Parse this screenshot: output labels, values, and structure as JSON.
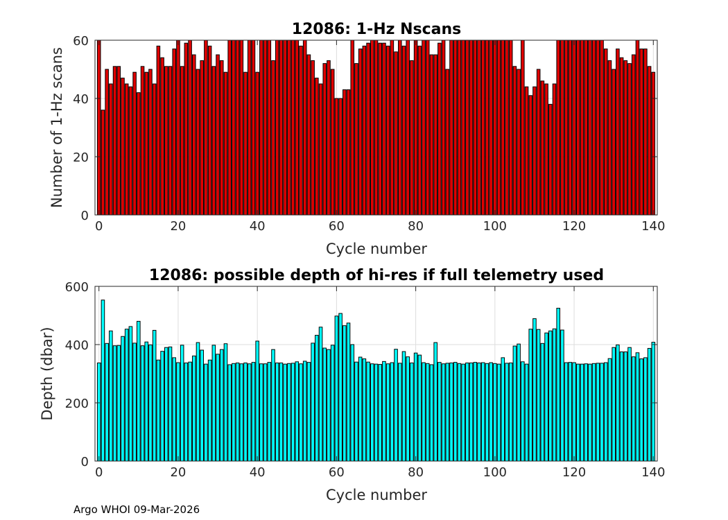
{
  "footer": "Argo WHOI 09-Mar-2026",
  "chart_data": [
    {
      "type": "bar",
      "title": "12086: 1-Hz Nscans",
      "xlabel": "Cycle number",
      "ylabel": "Number of 1-Hz scans",
      "xlim": [
        -1,
        141
      ],
      "ylim": [
        0,
        60
      ],
      "xticks": [
        0,
        20,
        40,
        60,
        80,
        100,
        120,
        140
      ],
      "yticks": [
        0,
        20,
        40,
        60
      ],
      "grid": true,
      "color": "#e00000",
      "x": [
        0,
        1,
        2,
        3,
        4,
        5,
        6,
        7,
        8,
        9,
        10,
        11,
        12,
        13,
        14,
        15,
        16,
        17,
        18,
        19,
        20,
        21,
        22,
        23,
        24,
        25,
        26,
        27,
        28,
        29,
        30,
        31,
        32,
        33,
        34,
        35,
        36,
        37,
        38,
        39,
        40,
        41,
        42,
        43,
        44,
        45,
        46,
        47,
        48,
        49,
        50,
        51,
        52,
        53,
        54,
        55,
        56,
        57,
        58,
        59,
        60,
        61,
        62,
        63,
        64,
        65,
        66,
        67,
        68,
        69,
        70,
        71,
        72,
        73,
        74,
        75,
        76,
        77,
        78,
        79,
        80,
        81,
        82,
        83,
        84,
        85,
        86,
        87,
        88,
        89,
        90,
        91,
        92,
        93,
        94,
        95,
        96,
        97,
        98,
        99,
        100,
        101,
        102,
        103,
        104,
        105,
        106,
        107,
        108,
        109,
        110,
        111,
        112,
        113,
        114,
        115,
        116,
        117,
        118,
        119,
        120,
        121,
        122,
        123,
        124,
        125,
        126,
        127,
        128,
        129,
        130,
        131,
        132,
        133,
        134,
        135,
        136,
        137,
        138,
        139,
        140
      ],
      "values": [
        60,
        36,
        50,
        45,
        51,
        51,
        47,
        45,
        44,
        49,
        42,
        51,
        49,
        50,
        45,
        58,
        54,
        51,
        51,
        57,
        60,
        51,
        59,
        60,
        55,
        50,
        53,
        60,
        58,
        51,
        55,
        53,
        49,
        60,
        60,
        60,
        60,
        49,
        60,
        60,
        49,
        60,
        60,
        60,
        53,
        60,
        60,
        60,
        60,
        60,
        60,
        58,
        60,
        55,
        53,
        47,
        45,
        52,
        53,
        50,
        40,
        40,
        43,
        43,
        60,
        52,
        57,
        58,
        59,
        60,
        60,
        59,
        59,
        58,
        60,
        56,
        60,
        58,
        60,
        53,
        60,
        58,
        60,
        60,
        55,
        55,
        59,
        60,
        50,
        60,
        60,
        60,
        60,
        60,
        60,
        60,
        60,
        60,
        60,
        60,
        60,
        60,
        60,
        60,
        60,
        51,
        50,
        60,
        44,
        41,
        44,
        50,
        46,
        45,
        38,
        45,
        60,
        60,
        60,
        60,
        60,
        60,
        60,
        60,
        60,
        60,
        60,
        60,
        57,
        53,
        50,
        57,
        54,
        53,
        52,
        55,
        60,
        57,
        57,
        51,
        49
      ]
    },
    {
      "type": "bar",
      "title": "12086: possible depth of hi-res if full telemetry used",
      "xlabel": "Cycle number",
      "ylabel": "Depth (dbar)",
      "xlim": [
        -1,
        141
      ],
      "ylim": [
        0,
        600
      ],
      "xticks": [
        0,
        20,
        40,
        60,
        80,
        100,
        120,
        140
      ],
      "yticks": [
        0,
        200,
        400,
        600
      ],
      "grid": true,
      "color": "#00ffff",
      "x": [
        0,
        1,
        2,
        3,
        4,
        5,
        6,
        7,
        8,
        9,
        10,
        11,
        12,
        13,
        14,
        15,
        16,
        17,
        18,
        19,
        20,
        21,
        22,
        23,
        24,
        25,
        26,
        27,
        28,
        29,
        30,
        31,
        32,
        33,
        34,
        35,
        36,
        37,
        38,
        39,
        40,
        41,
        42,
        43,
        44,
        45,
        46,
        47,
        48,
        49,
        50,
        51,
        52,
        53,
        54,
        55,
        56,
        57,
        58,
        59,
        60,
        61,
        62,
        63,
        64,
        65,
        66,
        67,
        68,
        69,
        70,
        71,
        72,
        73,
        74,
        75,
        76,
        77,
        78,
        79,
        80,
        81,
        82,
        83,
        84,
        85,
        86,
        87,
        88,
        89,
        90,
        91,
        92,
        93,
        94,
        95,
        96,
        97,
        98,
        99,
        100,
        101,
        102,
        103,
        104,
        105,
        106,
        107,
        108,
        109,
        110,
        111,
        112,
        113,
        114,
        115,
        116,
        117,
        118,
        119,
        120,
        121,
        122,
        123,
        124,
        125,
        126,
        127,
        128,
        129,
        130,
        131,
        132,
        133,
        134,
        135,
        136,
        137,
        138,
        139,
        140
      ],
      "values": [
        337,
        553,
        404,
        447,
        396,
        397,
        428,
        453,
        462,
        405,
        480,
        396,
        409,
        399,
        449,
        347,
        377,
        390,
        392,
        355,
        338,
        398,
        337,
        340,
        361,
        407,
        381,
        333,
        347,
        398,
        367,
        383,
        403,
        331,
        335,
        337,
        334,
        337,
        334,
        339,
        412,
        334,
        334,
        339,
        383,
        337,
        337,
        333,
        335,
        336,
        341,
        334,
        343,
        339,
        405,
        432,
        460,
        388,
        383,
        398,
        498,
        507,
        465,
        474,
        400,
        340,
        357,
        351,
        340,
        334,
        333,
        332,
        342,
        334,
        338,
        384,
        336,
        376,
        358,
        337,
        371,
        364,
        338,
        335,
        331,
        407,
        339,
        334,
        336,
        337,
        339,
        335,
        333,
        337,
        337,
        339,
        337,
        338,
        335,
        338,
        335,
        333,
        355,
        336,
        337,
        395,
        402,
        341,
        333,
        453,
        489,
        452,
        404,
        440,
        447,
        454,
        525,
        450,
        338,
        339,
        338,
        333,
        333,
        334,
        333,
        335,
        336,
        336,
        338,
        352,
        390,
        399,
        375,
        375,
        390,
        358,
        372,
        351,
        355,
        387,
        408
      ]
    }
  ]
}
